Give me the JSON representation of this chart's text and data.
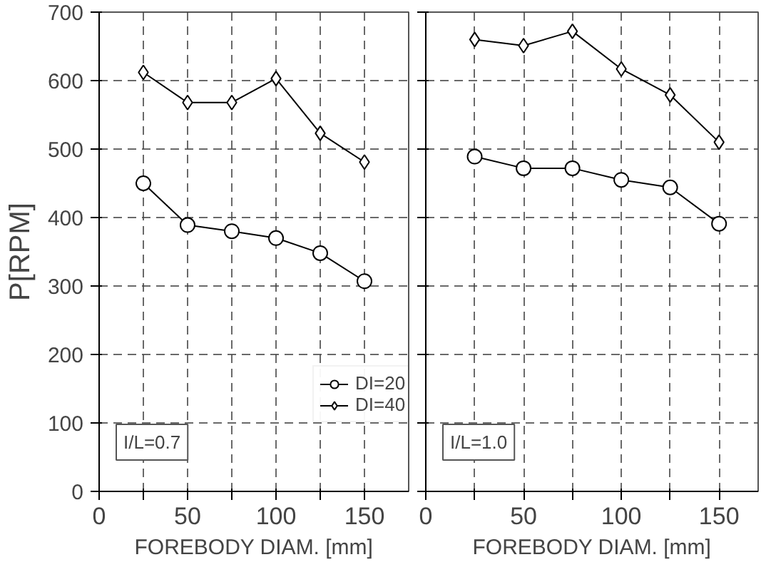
{
  "chart_data": [
    {
      "type": "line",
      "x": [
        25,
        50,
        75,
        100,
        125,
        150
      ],
      "xlabel": "FOREBODY DIAM. [mm]",
      "ylabel": "P[RPM]",
      "series": [
        {
          "name": "DI=20",
          "color": "#000000",
          "marker": "circle",
          "values": [
            450,
            389,
            380,
            370,
            348,
            307
          ]
        },
        {
          "name": "DI=40",
          "color": "#000000",
          "marker": "diamond",
          "values": [
            612,
            568,
            568,
            603,
            523,
            481
          ]
        }
      ],
      "xlim": [
        0,
        175
      ],
      "ylim": [
        0,
        700
      ],
      "xticks": [
        0,
        {
          "value": 25,
          "label": null
        },
        50,
        {
          "value": 75,
          "label": null
        },
        100,
        {
          "value": 125,
          "label": null
        },
        150
      ],
      "yticks": [
        0,
        100,
        200,
        300,
        400,
        500,
        600,
        700
      ],
      "grid": true,
      "legend": "bottom right",
      "line_style": "solid",
      "annotations": [
        "I/L=0.7"
      ]
    },
    {
      "type": "line",
      "x": [
        25,
        50,
        75,
        100,
        125,
        150
      ],
      "xlabel": "FOREBODY DIAM. [mm]",
      "series": [
        {
          "color": "#000000",
          "marker": "circle",
          "values": [
            489,
            472,
            472,
            455,
            444,
            391
          ]
        },
        {
          "color": "#000000",
          "marker": "diamond",
          "values": [
            660,
            651,
            672,
            617,
            579,
            510
          ]
        }
      ],
      "xlim": [
        0,
        170
      ],
      "ylim": [
        0,
        700
      ],
      "xticks": [
        0,
        {
          "value": 25,
          "label": null
        },
        50,
        {
          "value": 75,
          "label": null
        },
        100,
        {
          "value": 125,
          "label": null
        },
        150
      ],
      "yticks": [
        0,
        100,
        200,
        300,
        400,
        500,
        600,
        700
      ],
      "grid": true,
      "legend": false,
      "line_style": "solid",
      "tick_labels": "x",
      "annotations": [
        "I/L=1.0"
      ]
    }
  ]
}
